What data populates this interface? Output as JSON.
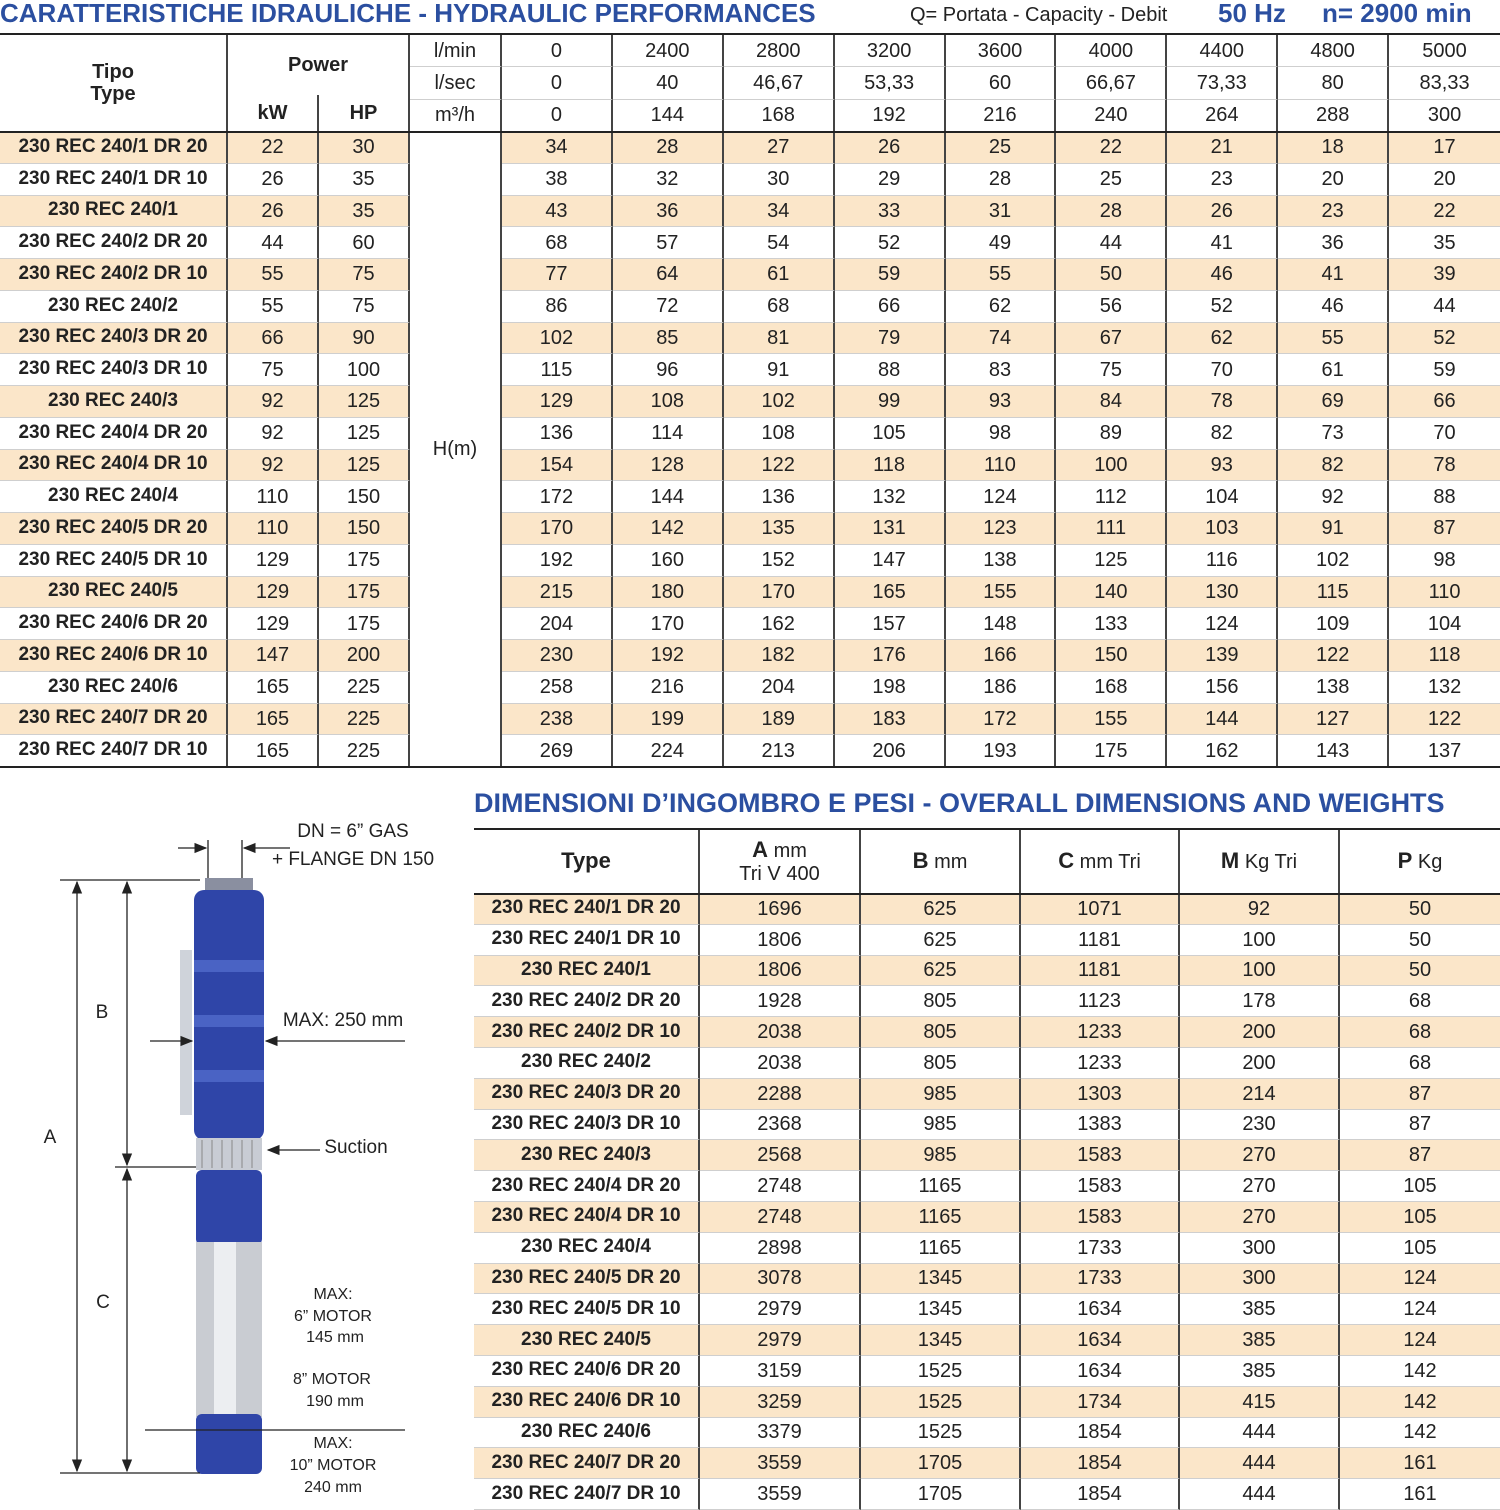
{
  "header": {
    "title": "CARATTERISTICHE IDRAULICHE - HYDRAULIC PERFORMANCES",
    "capacity": "Q= Portata - Capacity - Debit",
    "frequency": "50 Hz",
    "speed": "n= 2900 min"
  },
  "hydraulic": {
    "type_label": [
      "Tipo",
      "Type"
    ],
    "power_label": "Power",
    "kw_label": "kW",
    "hp_label": "HP",
    "head_label": "H(m)",
    "flow": [
      {
        "unit": "l/min",
        "values": [
          "0",
          "2400",
          "2800",
          "3200",
          "3600",
          "4000",
          "4400",
          "4800",
          "5000"
        ]
      },
      {
        "unit": "l/sec",
        "values": [
          "0",
          "40",
          "46,67",
          "53,33",
          "60",
          "66,67",
          "73,33",
          "80",
          "83,33"
        ]
      },
      {
        "unit": "m³/h",
        "values": [
          "0",
          "144",
          "168",
          "192",
          "216",
          "240",
          "264",
          "288",
          "300"
        ]
      }
    ],
    "rows": [
      [
        "230 REC 240/1 DR 20",
        22,
        30,
        34,
        28,
        27,
        26,
        25,
        22,
        21,
        18,
        17
      ],
      [
        "230 REC 240/1 DR 10",
        26,
        35,
        38,
        32,
        30,
        29,
        28,
        25,
        23,
        20,
        20
      ],
      [
        "230 REC 240/1",
        26,
        35,
        43,
        36,
        34,
        33,
        31,
        28,
        26,
        23,
        22
      ],
      [
        "230 REC 240/2 DR 20",
        44,
        60,
        68,
        57,
        54,
        52,
        49,
        44,
        41,
        36,
        35
      ],
      [
        "230 REC 240/2 DR 10",
        55,
        75,
        77,
        64,
        61,
        59,
        55,
        50,
        46,
        41,
        39
      ],
      [
        "230 REC 240/2",
        55,
        75,
        86,
        72,
        68,
        66,
        62,
        56,
        52,
        46,
        44
      ],
      [
        "230 REC 240/3 DR 20",
        66,
        90,
        102,
        85,
        81,
        79,
        74,
        67,
        62,
        55,
        52
      ],
      [
        "230 REC 240/3 DR 10",
        75,
        100,
        115,
        96,
        91,
        88,
        83,
        75,
        70,
        61,
        59
      ],
      [
        "230 REC 240/3",
        92,
        125,
        129,
        108,
        102,
        99,
        93,
        84,
        78,
        69,
        66
      ],
      [
        "230 REC 240/4 DR 20",
        92,
        125,
        136,
        114,
        108,
        105,
        98,
        89,
        82,
        73,
        70
      ],
      [
        "230 REC 240/4 DR 10",
        92,
        125,
        154,
        128,
        122,
        118,
        110,
        100,
        93,
        82,
        78
      ],
      [
        "230 REC 240/4",
        110,
        150,
        172,
        144,
        136,
        132,
        124,
        112,
        104,
        92,
        88
      ],
      [
        "230 REC 240/5 DR 20",
        110,
        150,
        170,
        142,
        135,
        131,
        123,
        111,
        103,
        91,
        87
      ],
      [
        "230 REC 240/5 DR 10",
        129,
        175,
        192,
        160,
        152,
        147,
        138,
        125,
        116,
        102,
        98
      ],
      [
        "230 REC 240/5",
        129,
        175,
        215,
        180,
        170,
        165,
        155,
        140,
        130,
        115,
        110
      ],
      [
        "230 REC 240/6 DR 20",
        129,
        175,
        204,
        170,
        162,
        157,
        148,
        133,
        124,
        109,
        104
      ],
      [
        "230 REC 240/6 DR 10",
        147,
        200,
        230,
        192,
        182,
        176,
        166,
        150,
        139,
        122,
        118
      ],
      [
        "230 REC 240/6",
        165,
        225,
        258,
        216,
        204,
        198,
        186,
        168,
        156,
        138,
        132
      ],
      [
        "230 REC 240/7 DR 20",
        165,
        225,
        238,
        199,
        189,
        183,
        172,
        155,
        144,
        127,
        122
      ],
      [
        "230 REC 240/7 DR 10",
        165,
        225,
        269,
        224,
        213,
        206,
        193,
        175,
        162,
        143,
        137
      ]
    ]
  },
  "dimensions": {
    "title": "DIMENSIONI D’INGOMBRO E PESI - OVERALL DIMENSIONS AND WEIGHTS",
    "headers": [
      [
        "Type"
      ],
      [
        "A",
        "mm",
        "Tri V 400"
      ],
      [
        "B",
        "mm"
      ],
      [
        "C",
        "mm Tri"
      ],
      [
        "M",
        "Kg Tri"
      ],
      [
        "P",
        "Kg"
      ]
    ],
    "rows": [
      [
        "230 REC 240/1 DR 20",
        1696,
        625,
        1071,
        92,
        50
      ],
      [
        "230 REC 240/1 DR 10",
        1806,
        625,
        1181,
        100,
        50
      ],
      [
        "230 REC 240/1",
        1806,
        625,
        1181,
        100,
        50
      ],
      [
        "230 REC 240/2 DR 20",
        1928,
        805,
        1123,
        178,
        68
      ],
      [
        "230 REC 240/2 DR 10",
        2038,
        805,
        1233,
        200,
        68
      ],
      [
        "230 REC 240/2",
        2038,
        805,
        1233,
        200,
        68
      ],
      [
        "230 REC 240/3 DR 20",
        2288,
        985,
        1303,
        214,
        87
      ],
      [
        "230 REC 240/3 DR 10",
        2368,
        985,
        1383,
        230,
        87
      ],
      [
        "230 REC 240/3",
        2568,
        985,
        1583,
        270,
        87
      ],
      [
        "230 REC 240/4 DR 20",
        2748,
        1165,
        1583,
        270,
        105
      ],
      [
        "230 REC 240/4 DR 10",
        2748,
        1165,
        1583,
        270,
        105
      ],
      [
        "230 REC 240/4",
        2898,
        1165,
        1733,
        300,
        105
      ],
      [
        "230 REC 240/5 DR 20",
        3078,
        1345,
        1733,
        300,
        124
      ],
      [
        "230 REC 240/5 DR 10",
        2979,
        1345,
        1634,
        385,
        124
      ],
      [
        "230 REC 240/5",
        2979,
        1345,
        1634,
        385,
        124
      ],
      [
        "230 REC 240/6 DR 20",
        3159,
        1525,
        1634,
        385,
        142
      ],
      [
        "230 REC 240/6 DR 10",
        3259,
        1525,
        1734,
        415,
        142
      ],
      [
        "230 REC 240/6",
        3379,
        1525,
        1854,
        444,
        142
      ],
      [
        "230 REC 240/7 DR 20",
        3559,
        1705,
        1854,
        444,
        161
      ],
      [
        "230 REC 240/7 DR 10",
        3559,
        1705,
        1854,
        444,
        161
      ]
    ]
  },
  "diagram": {
    "dn": "DN = 6” GAS",
    "flange": "+ FLANGE DN 150",
    "b": "B",
    "max_width": "MAX: 250 mm",
    "a": "A",
    "suction": "Suction",
    "c": "C",
    "motor6": [
      "MAX:",
      "6” MOTOR",
      "145 mm"
    ],
    "motor8": [
      "8” MOTOR",
      "190 mm"
    ],
    "motor10": [
      "MAX:",
      "10” MOTOR",
      "240 mm"
    ]
  }
}
